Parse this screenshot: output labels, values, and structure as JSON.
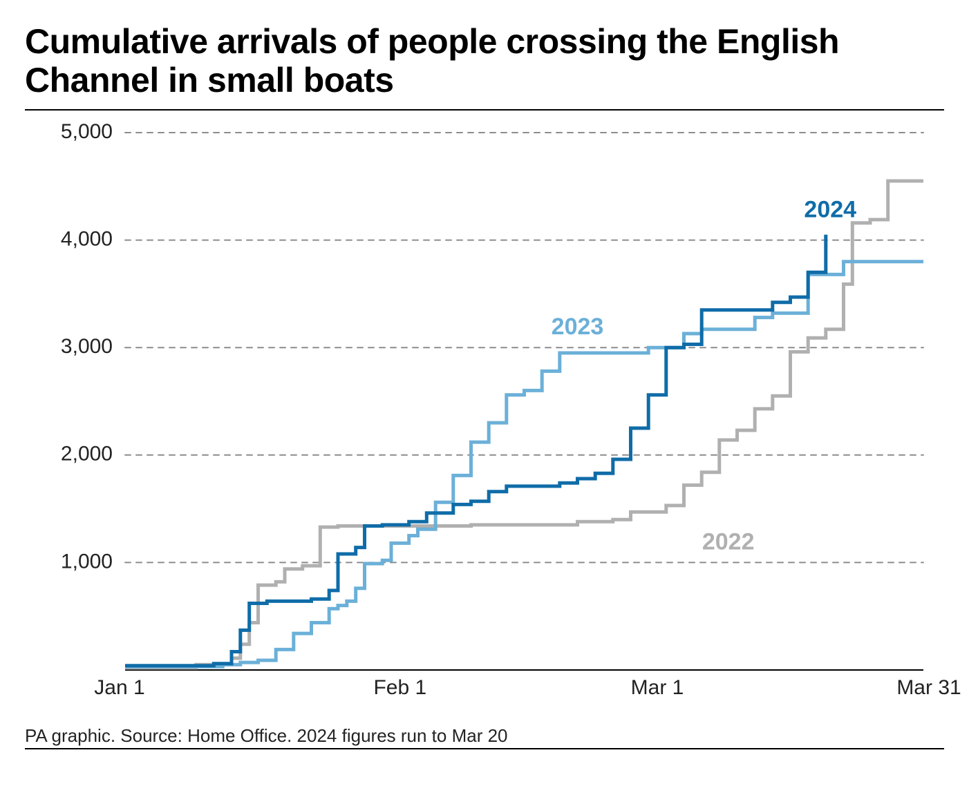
{
  "title": "Cumulative arrivals of people crossing the English Channel in small boats",
  "footer": "PA graphic. Source: Home Office. 2024 figures run to Mar 20",
  "chart": {
    "type": "step-line",
    "background_color": "#ffffff",
    "grid_color": "#8c8c8c",
    "grid_dash": "8 8",
    "axis_color": "#000000",
    "tick_label_color": "#222222",
    "tick_fontsize": 30,
    "series_label_fontsize": 34,
    "line_width": 5,
    "x_domain_days": [
      1,
      91
    ],
    "y_domain": [
      0,
      5000
    ],
    "y_ticks": [
      1000,
      2000,
      3000,
      4000,
      5000
    ],
    "y_tick_labels": [
      "1,000",
      "2,000",
      "3,000",
      "4,000",
      "5,000"
    ],
    "x_ticks": [
      1,
      32,
      61,
      91
    ],
    "x_tick_labels": [
      "Jan 1",
      "Feb 1",
      "Mar 1",
      "Mar 31"
    ],
    "x_tick_label_visible": [
      true,
      true,
      true,
      true
    ],
    "x_tick_mark_visible": [
      false,
      false,
      false,
      false
    ],
    "series": [
      {
        "name": "2022",
        "label": "2022",
        "color": "#b0b0b0",
        "label_day": 69,
        "label_value": 1180,
        "data": [
          [
            1,
            20
          ],
          [
            9,
            20
          ],
          [
            9,
            50
          ],
          [
            13,
            50
          ],
          [
            13,
            110
          ],
          [
            14,
            110
          ],
          [
            14,
            240
          ],
          [
            15,
            240
          ],
          [
            15,
            440
          ],
          [
            16,
            440
          ],
          [
            16,
            790
          ],
          [
            18,
            790
          ],
          [
            18,
            820
          ],
          [
            19,
            820
          ],
          [
            19,
            940
          ],
          [
            21,
            940
          ],
          [
            21,
            970
          ],
          [
            23,
            970
          ],
          [
            23,
            1330
          ],
          [
            25,
            1330
          ],
          [
            25,
            1340
          ],
          [
            40,
            1340
          ],
          [
            40,
            1350
          ],
          [
            52,
            1350
          ],
          [
            52,
            1380
          ],
          [
            56,
            1380
          ],
          [
            56,
            1400
          ],
          [
            58,
            1400
          ],
          [
            58,
            1470
          ],
          [
            62,
            1470
          ],
          [
            62,
            1530
          ],
          [
            64,
            1530
          ],
          [
            64,
            1720
          ],
          [
            66,
            1720
          ],
          [
            66,
            1840
          ],
          [
            68,
            1840
          ],
          [
            68,
            2140
          ],
          [
            70,
            2140
          ],
          [
            70,
            2230
          ],
          [
            72,
            2230
          ],
          [
            72,
            2430
          ],
          [
            74,
            2430
          ],
          [
            74,
            2550
          ],
          [
            76,
            2550
          ],
          [
            76,
            2960
          ],
          [
            78,
            2960
          ],
          [
            78,
            3090
          ],
          [
            80,
            3090
          ],
          [
            80,
            3170
          ],
          [
            82,
            3170
          ],
          [
            82,
            3590
          ],
          [
            83,
            3590
          ],
          [
            83,
            4160
          ],
          [
            85,
            4160
          ],
          [
            85,
            4190
          ],
          [
            87,
            4190
          ],
          [
            87,
            4550
          ],
          [
            91,
            4550
          ]
        ]
      },
      {
        "name": "2023",
        "label": "2023",
        "color": "#6bb0d8",
        "label_day": 52,
        "label_value": 3180,
        "data": [
          [
            1,
            30
          ],
          [
            12,
            30
          ],
          [
            12,
            50
          ],
          [
            14,
            50
          ],
          [
            14,
            70
          ],
          [
            16,
            70
          ],
          [
            16,
            90
          ],
          [
            18,
            90
          ],
          [
            18,
            190
          ],
          [
            20,
            190
          ],
          [
            20,
            340
          ],
          [
            22,
            340
          ],
          [
            22,
            440
          ],
          [
            24,
            440
          ],
          [
            24,
            570
          ],
          [
            25,
            570
          ],
          [
            25,
            600
          ],
          [
            26,
            600
          ],
          [
            26,
            640
          ],
          [
            27,
            640
          ],
          [
            27,
            760
          ],
          [
            28,
            760
          ],
          [
            28,
            990
          ],
          [
            30,
            990
          ],
          [
            30,
            1020
          ],
          [
            31,
            1020
          ],
          [
            31,
            1180
          ],
          [
            33,
            1180
          ],
          [
            33,
            1250
          ],
          [
            34,
            1250
          ],
          [
            34,
            1310
          ],
          [
            36,
            1310
          ],
          [
            36,
            1560
          ],
          [
            38,
            1560
          ],
          [
            38,
            1810
          ],
          [
            40,
            1810
          ],
          [
            40,
            2120
          ],
          [
            42,
            2120
          ],
          [
            42,
            2300
          ],
          [
            44,
            2300
          ],
          [
            44,
            2560
          ],
          [
            46,
            2560
          ],
          [
            46,
            2600
          ],
          [
            48,
            2600
          ],
          [
            48,
            2780
          ],
          [
            50,
            2780
          ],
          [
            50,
            2950
          ],
          [
            60,
            2950
          ],
          [
            60,
            3000
          ],
          [
            64,
            3000
          ],
          [
            64,
            3130
          ],
          [
            66,
            3130
          ],
          [
            66,
            3170
          ],
          [
            72,
            3170
          ],
          [
            72,
            3280
          ],
          [
            74,
            3280
          ],
          [
            74,
            3320
          ],
          [
            78,
            3320
          ],
          [
            78,
            3680
          ],
          [
            82,
            3680
          ],
          [
            82,
            3800
          ],
          [
            91,
            3800
          ]
        ]
      },
      {
        "name": "2024",
        "label": "2024",
        "color": "#0f6ca8",
        "label_day": 80.5,
        "label_value": 4270,
        "data": [
          [
            1,
            40
          ],
          [
            11,
            40
          ],
          [
            11,
            60
          ],
          [
            13,
            60
          ],
          [
            13,
            170
          ],
          [
            14,
            170
          ],
          [
            14,
            370
          ],
          [
            15,
            370
          ],
          [
            15,
            620
          ],
          [
            17,
            620
          ],
          [
            17,
            640
          ],
          [
            22,
            640
          ],
          [
            22,
            660
          ],
          [
            24,
            660
          ],
          [
            24,
            740
          ],
          [
            25,
            740
          ],
          [
            25,
            1080
          ],
          [
            27,
            1080
          ],
          [
            27,
            1140
          ],
          [
            28,
            1140
          ],
          [
            28,
            1340
          ],
          [
            30,
            1340
          ],
          [
            30,
            1350
          ],
          [
            33,
            1350
          ],
          [
            33,
            1380
          ],
          [
            35,
            1380
          ],
          [
            35,
            1460
          ],
          [
            38,
            1460
          ],
          [
            38,
            1540
          ],
          [
            40,
            1540
          ],
          [
            40,
            1570
          ],
          [
            42,
            1570
          ],
          [
            42,
            1660
          ],
          [
            44,
            1660
          ],
          [
            44,
            1710
          ],
          [
            50,
            1710
          ],
          [
            50,
            1740
          ],
          [
            52,
            1740
          ],
          [
            52,
            1780
          ],
          [
            54,
            1780
          ],
          [
            54,
            1830
          ],
          [
            56,
            1830
          ],
          [
            56,
            1960
          ],
          [
            58,
            1960
          ],
          [
            58,
            2250
          ],
          [
            60,
            2250
          ],
          [
            60,
            2560
          ],
          [
            62,
            2560
          ],
          [
            62,
            3000
          ],
          [
            64,
            3000
          ],
          [
            64,
            3030
          ],
          [
            66,
            3030
          ],
          [
            66,
            3350
          ],
          [
            74,
            3350
          ],
          [
            74,
            3420
          ],
          [
            76,
            3420
          ],
          [
            76,
            3470
          ],
          [
            78,
            3470
          ],
          [
            78,
            3700
          ],
          [
            80,
            3700
          ],
          [
            80,
            4050
          ]
        ]
      }
    ]
  }
}
